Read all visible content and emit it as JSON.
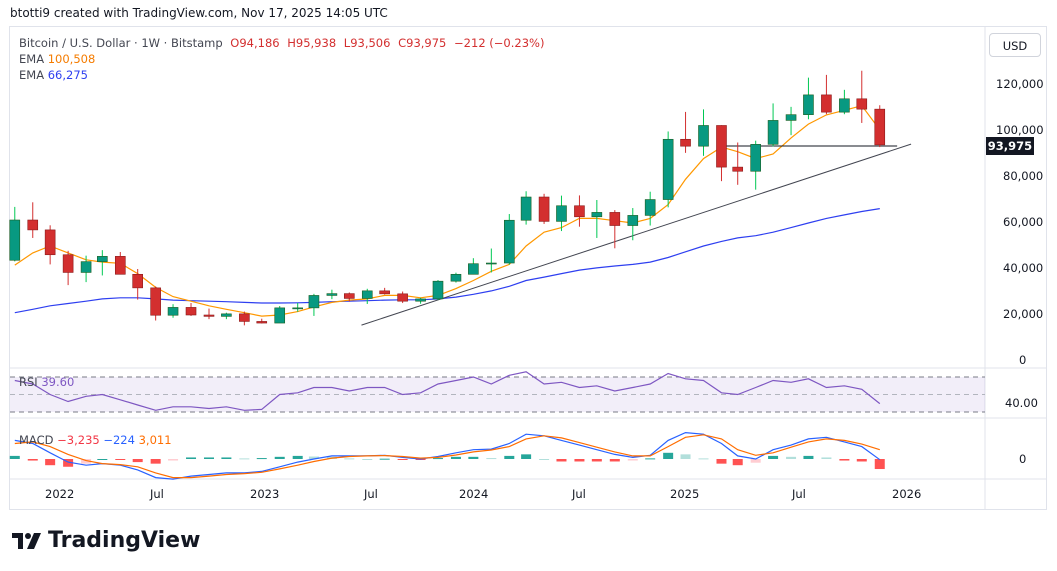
{
  "header": {
    "credit": "btotti9 created with TradingView.com, Nov 17, 2025 14:05 UTC"
  },
  "legend": {
    "symbol": "Bitcoin / U.S. Dollar · 1W · Bitstamp",
    "open": "O94,186",
    "high": "H95,938",
    "low": "L93,506",
    "close": "C93,975",
    "change": "−212 (−0.23%)",
    "ema1_label": "EMA",
    "ema1_value": "100,508",
    "ema2_label": "EMA",
    "ema2_value": "66,275"
  },
  "axis": {
    "currency": "USD",
    "last_price": "93,975",
    "price_ticks": [
      "120,000",
      "100,000",
      "80,000",
      "60,000",
      "40,000",
      "20,000",
      "0"
    ],
    "time_ticks": [
      "2022",
      "Jul",
      "2023",
      "Jul",
      "2024",
      "Jul",
      "2025",
      "Jul",
      "2026"
    ]
  },
  "rsi": {
    "label": "RSI",
    "value": "39.60",
    "tick": "40.00"
  },
  "macd": {
    "label": "MACD",
    "hist": "−3,235",
    "macd": "−224",
    "signal": "3,011",
    "tick": "0"
  },
  "logo": {
    "text": "TradingView"
  },
  "colors": {
    "up": "#089981",
    "down": "#d32f2f",
    "up_wick": "#00c853",
    "ema_fast": "#ff9800",
    "ema_slow": "#2e3ff0",
    "rsi": "#7e57c2",
    "macd": "#2962ff",
    "signal": "#ff6d00",
    "hist_up": "#26a69a",
    "hist_down": "#ff5252",
    "trendline": "#434651"
  },
  "chart_data": {
    "type": "candlestick",
    "title": "Bitcoin / U.S. Dollar · 1W · Bitstamp",
    "ylim": [
      0,
      130000
    ],
    "grid": false,
    "candles": [
      [
        "2021-10",
        43800,
        67000,
        43300,
        61300
      ],
      [
        "2021-11",
        61300,
        69000,
        53500,
        57000
      ],
      [
        "2021-12",
        57000,
        59000,
        42000,
        46200
      ],
      [
        "2022-01",
        46200,
        47900,
        33000,
        38500
      ],
      [
        "2022-02",
        38500,
        45800,
        34300,
        43200
      ],
      [
        "2022-03",
        43200,
        48200,
        37200,
        45500
      ],
      [
        "2022-04",
        45500,
        47400,
        37600,
        37700
      ],
      [
        "2022-05",
        37700,
        40000,
        26700,
        31800
      ],
      [
        "2022-06",
        31800,
        32400,
        17600,
        19900
      ],
      [
        "2022-07",
        19900,
        24700,
        18800,
        23300
      ],
      [
        "2022-08",
        23300,
        25200,
        19600,
        20000
      ],
      [
        "2022-09",
        20000,
        22800,
        18200,
        19400
      ],
      [
        "2022-10",
        19400,
        21000,
        18200,
        20500
      ],
      [
        "2022-11",
        20500,
        21500,
        15500,
        17200
      ],
      [
        "2022-12",
        17200,
        18400,
        16300,
        16500
      ],
      [
        "2023-01",
        16500,
        23900,
        16500,
        23100
      ],
      [
        "2023-02",
        23100,
        25200,
        21400,
        23100
      ],
      [
        "2023-03",
        23100,
        29200,
        19600,
        28500
      ],
      [
        "2023-04",
        28500,
        31000,
        26900,
        29300
      ],
      [
        "2023-05",
        29300,
        29800,
        25800,
        27200
      ],
      [
        "2023-06",
        27200,
        31400,
        24800,
        30500
      ],
      [
        "2023-07",
        30500,
        31800,
        28900,
        29200
      ],
      [
        "2023-08",
        29200,
        30200,
        25200,
        26000
      ],
      [
        "2023-09",
        26000,
        27500,
        24900,
        27000
      ],
      [
        "2023-10",
        27000,
        35200,
        26500,
        34700
      ],
      [
        "2023-11",
        34700,
        38400,
        34100,
        37700
      ],
      [
        "2023-12",
        37700,
        44700,
        37600,
        42300
      ],
      [
        "2024-01",
        42300,
        48900,
        38500,
        42600
      ],
      [
        "2024-02",
        42600,
        63900,
        41900,
        61200
      ],
      [
        "2024-03",
        61200,
        73800,
        59300,
        71300
      ],
      [
        "2024-04",
        71300,
        72700,
        59600,
        60700
      ],
      [
        "2024-05",
        60700,
        71900,
        56500,
        67500
      ],
      [
        "2024-06",
        67500,
        72000,
        58400,
        62700
      ],
      [
        "2024-07",
        62700,
        70000,
        53500,
        64600
      ],
      [
        "2024-08",
        64600,
        65600,
        49000,
        58900
      ],
      [
        "2024-09",
        58900,
        66500,
        52500,
        63300
      ],
      [
        "2024-10",
        63300,
        73600,
        58900,
        70200
      ],
      [
        "2024-11",
        70200,
        99800,
        66800,
        96400
      ],
      [
        "2024-12",
        96400,
        108300,
        90500,
        93400
      ],
      [
        "2025-01",
        93400,
        109400,
        89200,
        102400
      ],
      [
        "2025-02",
        102400,
        102500,
        78200,
        84300
      ],
      [
        "2025-03",
        84300,
        95000,
        76600,
        82500
      ],
      [
        "2025-04",
        82500,
        95800,
        74500,
        94200
      ],
      [
        "2025-05",
        94200,
        112000,
        93300,
        104600
      ],
      [
        "2025-06",
        104600,
        110500,
        98200,
        107100
      ],
      [
        "2025-07",
        107100,
        123200,
        105100,
        115700
      ],
      [
        "2025-08",
        115700,
        124400,
        107300,
        108200
      ],
      [
        "2025-09",
        108200,
        117900,
        107300,
        114000
      ],
      [
        "2025-10",
        114000,
        126200,
        103500,
        109500
      ],
      [
        "2025-11",
        109500,
        111200,
        93000,
        93975
      ]
    ],
    "ema_fast": [
      41700,
      47000,
      50000,
      47000,
      44000,
      43000,
      42500,
      38000,
      32000,
      28000,
      26000,
      24000,
      22500,
      21000,
      19500,
      20000,
      21500,
      23500,
      25500,
      26500,
      27000,
      28500,
      28500,
      27500,
      28500,
      31500,
      35000,
      39000,
      42000,
      50000,
      56000,
      58000,
      62000,
      62000,
      61000,
      60000,
      62000,
      68000,
      79000,
      88000,
      93000,
      91000,
      88000,
      90000,
      97000,
      103000,
      107000,
      109000,
      111000,
      100508
    ],
    "ema_slow": [
      21000,
      22500,
      24000,
      25000,
      26000,
      27000,
      27500,
      27500,
      27000,
      26500,
      26200,
      26000,
      25800,
      25500,
      25200,
      25200,
      25300,
      25500,
      25800,
      26000,
      26200,
      26500,
      26600,
      26600,
      27000,
      27800,
      29000,
      30500,
      32500,
      35000,
      36500,
      38000,
      39500,
      40500,
      41300,
      42000,
      43000,
      45000,
      47500,
      50000,
      52000,
      53500,
      54500,
      56000,
      58000,
      60000,
      62000,
      63500,
      65000,
      66275
    ],
    "trendline": [
      [
        "2023-06-05",
        15600
      ],
      [
        "2026-01-08",
        94300
      ]
    ],
    "support_line": {
      "price": 93500,
      "from": "2025-02-10",
      "to": "2025-12-15"
    },
    "rsi": {
      "levels": [
        30,
        50,
        70
      ],
      "values": [
        66,
        62,
        50,
        42,
        48,
        50,
        44,
        38,
        32,
        36,
        36,
        34,
        36,
        32,
        33,
        50,
        52,
        58,
        58,
        54,
        58,
        58,
        50,
        52,
        62,
        66,
        70,
        62,
        72,
        76,
        62,
        64,
        58,
        60,
        54,
        58,
        62,
        74,
        68,
        66,
        52,
        50,
        58,
        66,
        64,
        68,
        58,
        60,
        56,
        39.6
      ]
    },
    "macd": {
      "macd": [
        6000,
        5000,
        2000,
        -1000,
        -2000,
        -1500,
        -2000,
        -3500,
        -6000,
        -6500,
        -5500,
        -5000,
        -4500,
        -4500,
        -4000,
        -2500,
        -1000,
        0,
        1000,
        1000,
        1000,
        1200,
        500,
        0,
        800,
        2000,
        3000,
        3200,
        5000,
        8000,
        7500,
        6000,
        4500,
        3000,
        1500,
        500,
        1200,
        6000,
        8500,
        8000,
        5000,
        1000,
        0,
        3000,
        4500,
        6500,
        7000,
        5500,
        4000,
        -224
      ],
      "signal": [
        5000,
        5500,
        4000,
        1500,
        -500,
        -1500,
        -1800,
        -2500,
        -4500,
        -6000,
        -6000,
        -5500,
        -5000,
        -4700,
        -4300,
        -3200,
        -2000,
        -800,
        300,
        800,
        1000,
        1100,
        800,
        300,
        500,
        1300,
        2300,
        2900,
        4000,
        6500,
        7500,
        6800,
        5300,
        3800,
        2300,
        1000,
        1000,
        4000,
        7000,
        7800,
        6500,
        3000,
        1200,
        2000,
        3800,
        5500,
        6500,
        6000,
        4800,
        3011
      ]
    }
  }
}
